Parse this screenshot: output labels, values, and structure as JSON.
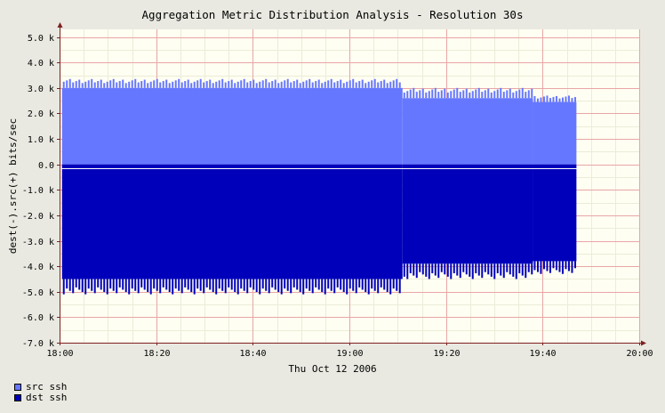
{
  "chart_data": {
    "type": "area",
    "title": "Aggregation Metric Distribution Analysis - Resolution 30s",
    "ylabel": "dest(-).src(+) bits/sec",
    "xlabel": "Thu Oct 12 2006",
    "x_ticks": [
      "18:00",
      "18:20",
      "18:40",
      "19:00",
      "19:20",
      "19:40",
      "20:00"
    ],
    "y_ticks": [
      "5.0 k",
      "4.0 k",
      "3.0 k",
      "2.0 k",
      "1.0 k",
      "0.0",
      "-1.0 k",
      "-2.0 k",
      "-3.0 k",
      "-4.0 k",
      "-5.0 k",
      "-6.0 k",
      "-7.0 k"
    ],
    "y_tick_values": [
      5000,
      4000,
      3000,
      2000,
      1000,
      0,
      -1000,
      -2000,
      -3000,
      -4000,
      -5000,
      -6000,
      -7000
    ],
    "ylim": [
      -7000,
      5300
    ],
    "xlim_minutes": [
      0,
      120
    ],
    "grid": true,
    "series": [
      {
        "name": "src ssh",
        "color": "#6677ff",
        "direction": "positive",
        "segments": [
          {
            "start_min": 0.5,
            "end_min": 71,
            "base": 3000,
            "spike": 3350
          },
          {
            "start_min": 71,
            "end_min": 98,
            "base": 2600,
            "spike": 3000
          },
          {
            "start_min": 98,
            "end_min": 107,
            "base": 2450,
            "spike": 2700
          }
        ]
      },
      {
        "name": "dst ssh",
        "color": "#0000bb",
        "direction": "negative",
        "segments": [
          {
            "start_min": 0.5,
            "end_min": 71,
            "base": -4500,
            "spike": -5100
          },
          {
            "start_min": 71,
            "end_min": 98,
            "base": -3900,
            "spike": -4500
          },
          {
            "start_min": 98,
            "end_min": 107,
            "base": -3800,
            "spike": -4300
          }
        ]
      }
    ]
  },
  "legend": [
    {
      "label": "src ssh",
      "color": "#6677ff"
    },
    {
      "label": "dst ssh",
      "color": "#0000bb"
    }
  ],
  "colors": {
    "plot_background": "#fefef2",
    "page_background": "#e9e9e1",
    "grid_major": "#e8a6a6",
    "grid_minor": "#ececd8",
    "axis": "#7f2020"
  }
}
